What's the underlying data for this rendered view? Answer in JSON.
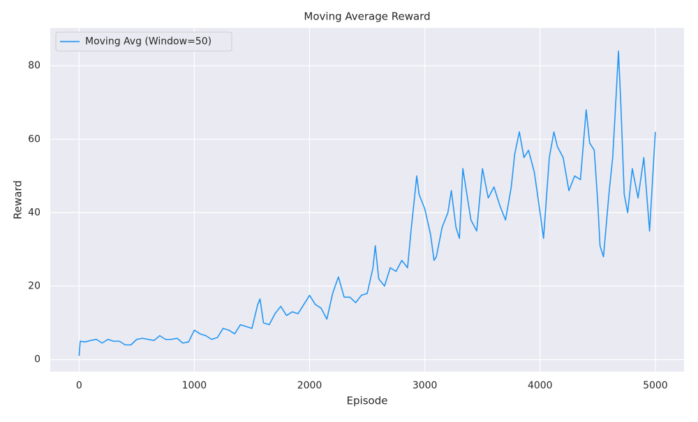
{
  "chart_data": {
    "type": "line",
    "title": "Moving Average Reward",
    "xlabel": "Episode",
    "ylabel": "Reward",
    "x": [
      0,
      10,
      50,
      100,
      150,
      200,
      250,
      300,
      350,
      400,
      450,
      500,
      550,
      600,
      650,
      700,
      750,
      800,
      850,
      900,
      950,
      1000,
      1050,
      1100,
      1150,
      1200,
      1250,
      1300,
      1350,
      1400,
      1450,
      1500,
      1550,
      1570,
      1600,
      1650,
      1700,
      1750,
      1800,
      1850,
      1900,
      1950,
      2000,
      2050,
      2100,
      2150,
      2200,
      2250,
      2300,
      2350,
      2400,
      2450,
      2500,
      2550,
      2570,
      2600,
      2650,
      2700,
      2750,
      2800,
      2850,
      2880,
      2930,
      2950,
      3000,
      3050,
      3080,
      3100,
      3150,
      3200,
      3230,
      3270,
      3300,
      3330,
      3370,
      3400,
      3450,
      3500,
      3550,
      3600,
      3650,
      3700,
      3750,
      3780,
      3820,
      3860,
      3900,
      3950,
      4000,
      4030,
      4080,
      4120,
      4150,
      4200,
      4250,
      4300,
      4350,
      4400,
      4430,
      4470,
      4500,
      4520,
      4550,
      4600,
      4630,
      4660,
      4680,
      4700,
      4730,
      4760,
      4800,
      4850,
      4900,
      4950,
      5000
    ],
    "series": [
      {
        "name": "Moving Avg (Window=50)",
        "color": "#2196f3",
        "values": [
          1,
          5,
          4.8,
          5.2,
          5.5,
          4.5,
          5.5,
          5,
          5,
          4,
          4,
          5.5,
          5.8,
          5.5,
          5.2,
          6.5,
          5.5,
          5.5,
          5.8,
          4.5,
          4.8,
          8,
          7,
          6.5,
          5.5,
          6,
          8.5,
          8,
          7,
          9.5,
          9,
          8.5,
          15,
          16.5,
          10,
          9.5,
          12.5,
          14.5,
          12,
          13,
          12.5,
          15,
          17.5,
          15,
          14,
          11,
          18,
          22.5,
          17,
          17,
          15.5,
          17.5,
          18,
          25,
          31,
          22,
          20,
          25,
          24,
          27,
          25,
          35,
          50,
          45,
          41,
          34,
          27,
          28,
          36,
          40,
          46,
          36,
          33,
          52,
          44,
          38,
          35,
          52,
          44,
          47,
          42,
          38,
          47,
          56,
          62,
          55,
          57,
          51,
          40,
          33,
          55,
          62,
          58,
          55,
          46,
          50,
          49,
          68,
          59,
          57,
          43,
          31,
          28,
          46,
          55,
          72,
          84,
          70,
          45,
          40,
          52,
          44,
          55,
          35,
          62
        ]
      }
    ],
    "xlim": [
      -250,
      5249
    ],
    "ylim": [
      -3.3,
      90.3
    ],
    "xticks": [
      0,
      1000,
      2000,
      3000,
      4000,
      5000
    ],
    "yticks": [
      0,
      20,
      40,
      60,
      80
    ],
    "grid": true,
    "legend": "upper left"
  }
}
